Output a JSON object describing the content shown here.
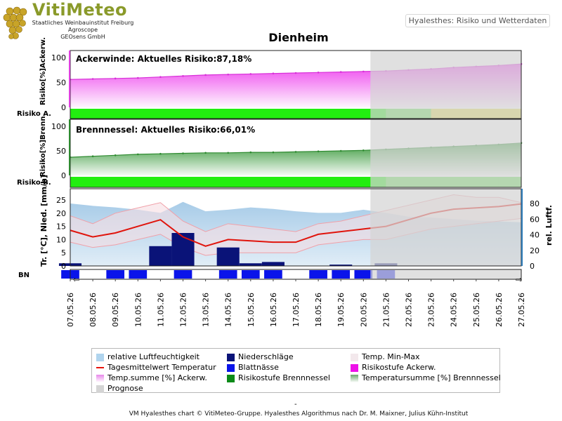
{
  "logo": {
    "title": "VitiMeteo",
    "line1": "Staatliches Weinbauinstitut Freiburg",
    "line2": "Agroscope",
    "line3": "GEOsens GmbH"
  },
  "header": {
    "badge": "Hyalesthes: Risiko und Wetterdaten"
  },
  "chart_data": {
    "type": "area",
    "title": "Dienheim",
    "dates": [
      "07.05.26",
      "08.05.26",
      "09.05.26",
      "10.05.26",
      "11.05.26",
      "12.05.26",
      "13.05.26",
      "14.05.26",
      "15.05.26",
      "16.05.26",
      "17.05.26",
      "18.05.26",
      "19.05.26",
      "20.05.26",
      "21.05.26",
      "22.05.26",
      "23.05.26",
      "24.05.26",
      "25.05.26",
      "26.05.26",
      "27.05.26"
    ],
    "prognose_from": "20.05.26",
    "panels": {
      "ackerwinde": {
        "label": "Ackerwinde:",
        "risk_text": "Aktuelles Risiko:87,18%",
        "ylabel": "Risiko[%]Ackerw.",
        "row_label": "Risiko A.",
        "yticks": [
          "100",
          "50",
          "0"
        ],
        "ylim": [
          0,
          100
        ],
        "temp_sum": [
          56,
          57,
          58,
          59,
          61,
          63,
          65,
          66,
          67,
          68,
          69,
          70,
          71,
          72,
          73,
          75,
          77,
          80,
          82,
          84,
          87
        ],
        "risk_level": [
          "green",
          "green",
          "green",
          "green",
          "green",
          "green",
          "green",
          "green",
          "green",
          "green",
          "green",
          "green",
          "green",
          "green",
          "green",
          "green",
          "green",
          "yellow",
          "yellow",
          "yellow",
          "yellow"
        ]
      },
      "brennnessel": {
        "label": "Brennnessel:",
        "risk_text": "Aktuelles Risiko:66,01%",
        "ylabel": "Risiko[%]Brenn.",
        "row_label": "Risiko B.",
        "yticks": [
          "100",
          "50",
          "0"
        ],
        "ylim": [
          0,
          100
        ],
        "temp_sum": [
          37,
          39,
          41,
          43,
          44,
          45,
          46,
          46,
          47,
          47,
          48,
          49,
          50,
          51,
          53,
          55,
          57,
          59,
          61,
          63,
          66
        ],
        "risk_level": [
          "green",
          "green",
          "green",
          "green",
          "green",
          "green",
          "green",
          "green",
          "green",
          "green",
          "green",
          "green",
          "green",
          "green",
          "green",
          "green",
          "green",
          "green",
          "green",
          "green",
          "green"
        ]
      },
      "weather": {
        "ylabel_left": "Tr. [°C], Nied. [mm/h]",
        "ylabel_right": "rel. Luftf.",
        "yticks_left": [
          "25",
          "20",
          "15",
          "10",
          "5",
          "0"
        ],
        "yticks_right": [
          "80",
          "60",
          "40",
          "20",
          "0"
        ],
        "ylim_left": [
          0,
          28
        ],
        "ylim_right": [
          0,
          95
        ],
        "bn_label": "BN",
        "humidity": [
          80,
          77,
          75,
          72,
          68,
          82,
          70,
          72,
          75,
          73,
          70,
          68,
          68,
          72,
          68,
          63,
          62,
          60,
          58,
          57,
          56
        ],
        "temp_mean": [
          13.5,
          11,
          12.5,
          15,
          17.5,
          11,
          7.5,
          10,
          9.5,
          9,
          9,
          12,
          13,
          14,
          15,
          17.5,
          20,
          21.5,
          22,
          22.5,
          23.5
        ],
        "temp_max": [
          19,
          16,
          20,
          22,
          24,
          17,
          13,
          16,
          15,
          14,
          13,
          16,
          17,
          19,
          21,
          23,
          25,
          27,
          26,
          26,
          24
        ],
        "temp_min": [
          9,
          7,
          8,
          10,
          12,
          7,
          4,
          5,
          5,
          5,
          5,
          8,
          9,
          10,
          10,
          12,
          14,
          15,
          16,
          17,
          18
        ],
        "precip": [
          1,
          0,
          0,
          0,
          7.5,
          12.5,
          0,
          7,
          1,
          1.5,
          0,
          0,
          0.5,
          0,
          1,
          0,
          0,
          0,
          0,
          0,
          0
        ],
        "leaf_wetness": [
          1,
          0,
          1,
          1,
          0,
          1,
          0,
          1,
          1,
          1,
          0,
          1,
          1,
          1,
          1,
          0,
          0,
          0,
          0,
          0,
          0
        ]
      }
    }
  },
  "legend": [
    {
      "label": "relative Luftfeuchtigkeit",
      "color": "#b0d4ee",
      "kind": "box"
    },
    {
      "label": "Niederschläge",
      "color": "#0a1378",
      "kind": "box"
    },
    {
      "label": "Temp. Min-Max",
      "color": "#f3e8ec",
      "kind": "box"
    },
    {
      "label": "Tagesmittelwert Temperatur",
      "color": "#e8140c",
      "kind": "line"
    },
    {
      "label": "Blattnässe",
      "color": "#0a14ea",
      "kind": "box"
    },
    {
      "label": "Risikostufe Ackerw.",
      "color": "#ee10e8",
      "kind": "box"
    },
    {
      "label": "Temp.summe [%] Ackerw.",
      "color": "#e888ea",
      "kind": "grad"
    },
    {
      "label": "Risikostufe Brennnessel",
      "color": "#0c8a18",
      "kind": "box"
    },
    {
      "label": "Temperatursumme [%] Brennnessel",
      "color": "#6aa86c",
      "kind": "grad"
    },
    {
      "label": "Prognose",
      "color": "#d4d4d4",
      "kind": "box"
    }
  ],
  "footer": {
    "dash": "-",
    "text": "VM Hyalesthes chart © VitiMeteo-Gruppe. Hyalesthes Algorithmus nach Dr. M. Maixner, Julius Kühn-Institut"
  },
  "colors": {
    "risk_green": "#22ee10",
    "risk_green_prog": "#66dd55",
    "risk_yellow": "#e0dc50",
    "ackerwinde_fill": "#ee44ee",
    "brennnessel_fill": "#3a9a3c",
    "prognose": "#d4d4d4",
    "humidity": "#a8cce8",
    "temp_line": "#e0140c",
    "precip": "#0a1378",
    "leaf_wetness": "#0a14ea"
  }
}
